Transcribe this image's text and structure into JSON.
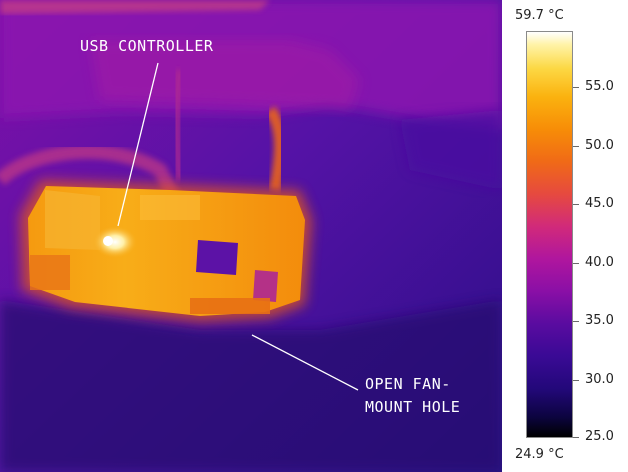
{
  "annotations": {
    "usb": "USB CONTROLLER",
    "fan": "OPEN FAN-\nMOUNT HOLE"
  },
  "scale": {
    "max_label": "59.7 °C",
    "min_label": "24.9 °C",
    "ticks": [
      "55.0",
      "50.0",
      "45.0",
      "40.0",
      "35.0",
      "30.0",
      "25.0"
    ],
    "colors": {
      "background": "#5c14a8",
      "board": "#f49a14",
      "hotspot": "#fff6c8"
    }
  }
}
